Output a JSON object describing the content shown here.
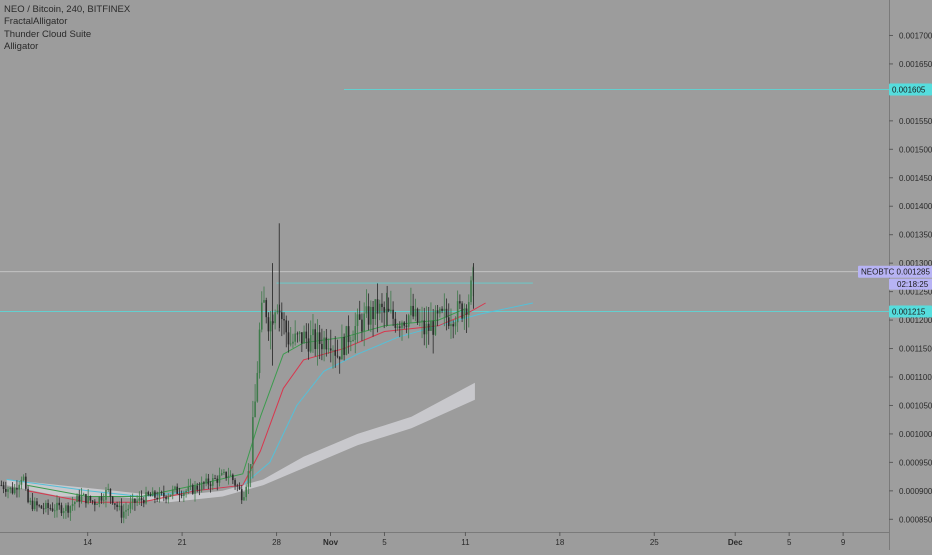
{
  "legend": {
    "symbol_line": "NEO / Bitcoin, 240, BITFINEX",
    "indicators": [
      "FractalAlligator",
      "Thunder Cloud Suite",
      "Alligator"
    ]
  },
  "chart_data": {
    "type": "candlestick",
    "symbol": "NEOBTC",
    "exchange": "BITFINEX",
    "interval": "240",
    "price_axis": {
      "ticks": [
        "0.001700",
        "0.001650",
        "0.001550",
        "0.001500",
        "0.001450",
        "0.001400",
        "0.001350",
        "0.001300",
        "0.001250",
        "0.001200",
        "0.001150",
        "0.001100",
        "0.001050",
        "0.001000",
        "0.000950",
        "0.000900",
        "0.000850"
      ],
      "range": [
        0.00084,
        0.00175
      ]
    },
    "time_axis": {
      "ticks": [
        {
          "label": "14",
          "day": 14
        },
        {
          "label": "21",
          "day": 21
        },
        {
          "label": "28",
          "day": 28
        },
        {
          "label": "Nov",
          "day": 32
        },
        {
          "label": "5",
          "day": 36
        },
        {
          "label": "11",
          "day": 42
        },
        {
          "label": "18",
          "day": 49
        },
        {
          "label": "25",
          "day": 56
        },
        {
          "label": "Dec",
          "day": 62
        },
        {
          "label": "5",
          "day": 66
        },
        {
          "label": "9",
          "day": 70
        }
      ],
      "day_range": [
        7.5,
        73.4
      ]
    },
    "current_price": {
      "label": "NEOBTC",
      "value": "0.001285",
      "countdown": "02:18:25"
    },
    "horizontal_lines": [
      {
        "value": "0.001605",
        "color": "#55dddd",
        "from_day": 33
      },
      {
        "value": "0.001215",
        "color": "#55dddd",
        "from_day": 7.5
      }
    ],
    "resistance_line": {
      "value": 0.001265,
      "from_day": 28,
      "to_day": 47
    },
    "ohlc_path": [
      [
        7.6,
        0.00091
      ],
      [
        8.5,
        0.0009
      ],
      [
        9.2,
        0.00093
      ],
      [
        9.5,
        0.00088
      ],
      [
        10.5,
        0.00087
      ],
      [
        11.5,
        0.00087
      ],
      [
        12.5,
        0.00087
      ],
      [
        13.5,
        0.00089
      ],
      [
        14.5,
        0.00088
      ],
      [
        15.5,
        0.0009
      ],
      [
        16.5,
        0.00086
      ],
      [
        17.5,
        0.00088
      ],
      [
        18.5,
        0.00089
      ],
      [
        19.5,
        0.00089
      ],
      [
        20.5,
        0.0009
      ],
      [
        21.5,
        0.0009
      ],
      [
        22.5,
        0.00091
      ],
      [
        23.5,
        0.00092
      ],
      [
        24.5,
        0.00093
      ],
      [
        25.5,
        0.00089
      ],
      [
        26.0,
        0.00094
      ],
      [
        26.4,
        0.00105
      ],
      [
        26.8,
        0.0012
      ],
      [
        27.1,
        0.00123
      ],
      [
        27.5,
        0.00119
      ],
      [
        28.0,
        0.00124
      ],
      [
        28.3,
        0.00121
      ],
      [
        29.0,
        0.00116
      ],
      [
        30.0,
        0.00117
      ],
      [
        31.0,
        0.00116
      ],
      [
        32.0,
        0.00117
      ],
      [
        32.5,
        0.00114
      ],
      [
        33.5,
        0.00118
      ],
      [
        34.5,
        0.0012
      ],
      [
        35.5,
        0.00122
      ],
      [
        36.0,
        0.00121
      ],
      [
        37.0,
        0.0012
      ],
      [
        38.0,
        0.00121
      ],
      [
        39.0,
        0.00118
      ],
      [
        40.0,
        0.0012
      ],
      [
        41.0,
        0.00121
      ],
      [
        41.8,
        0.00122
      ],
      [
        42.3,
        0.00124
      ],
      [
        42.7,
        0.001285
      ]
    ],
    "spikes": [
      {
        "day": 28.2,
        "high": 0.00137,
        "low": 0.00118
      },
      {
        "day": 27.7,
        "high": 0.0013,
        "low": 0.00112
      },
      {
        "day": 42.6,
        "high": 0.0013,
        "low": 0.00122
      },
      {
        "day": 36.2,
        "high": 0.00126,
        "low": 0.00119
      }
    ],
    "alligator": {
      "red": [
        [
          9.5,
          0.0009
        ],
        [
          14,
          0.00088
        ],
        [
          18,
          0.00088
        ],
        [
          22,
          0.0009
        ],
        [
          25.5,
          0.00091
        ],
        [
          26.8,
          0.00097
        ],
        [
          28.5,
          0.00108
        ],
        [
          30,
          0.00113
        ],
        [
          33,
          0.00115
        ],
        [
          36,
          0.00118
        ],
        [
          40,
          0.00119
        ],
        [
          42,
          0.00121
        ],
        [
          43.5,
          0.00123
        ]
      ],
      "green": [
        [
          9.5,
          0.00091
        ],
        [
          14,
          0.00089
        ],
        [
          18,
          0.00089
        ],
        [
          22,
          0.00091
        ],
        [
          25.5,
          0.00093
        ],
        [
          26.8,
          0.00103
        ],
        [
          28.5,
          0.00114
        ],
        [
          30,
          0.00116
        ],
        [
          33,
          0.00117
        ],
        [
          36,
          0.00119
        ],
        [
          40,
          0.0012
        ],
        [
          42,
          0.00122
        ]
      ],
      "blue": [
        [
          8,
          0.00092
        ],
        [
          14,
          0.0009
        ],
        [
          18,
          0.00089
        ],
        [
          22,
          0.0009
        ],
        [
          25.5,
          0.00091
        ],
        [
          27.5,
          0.00095
        ],
        [
          29.5,
          0.00105
        ],
        [
          31.5,
          0.00111
        ],
        [
          34,
          0.00114
        ],
        [
          37,
          0.00117
        ],
        [
          40,
          0.00119
        ],
        [
          43,
          0.00121
        ],
        [
          47,
          0.00123
        ]
      ]
    },
    "cloud": {
      "upper": [
        [
          8,
          0.00092
        ],
        [
          12,
          0.00091
        ],
        [
          16,
          0.0009
        ],
        [
          20,
          0.00089
        ],
        [
          24,
          0.0009
        ],
        [
          27,
          0.00092
        ],
        [
          30,
          0.00096
        ],
        [
          34,
          0.001
        ],
        [
          38,
          0.00103
        ],
        [
          42.7,
          0.00109
        ]
      ],
      "lower": [
        [
          8,
          0.00091
        ],
        [
          12,
          0.00089
        ],
        [
          16,
          0.00089
        ],
        [
          20,
          0.00088
        ],
        [
          24,
          0.00089
        ],
        [
          27,
          0.00091
        ],
        [
          30,
          0.00094
        ],
        [
          34,
          0.00098
        ],
        [
          38,
          0.00101
        ],
        [
          42.7,
          0.00106
        ]
      ],
      "color": "#d3d3d8"
    },
    "colors": {
      "up": "#3e7a4a",
      "down": "#2a2a2a",
      "cyan": "#55dddd",
      "price_label": "#b7b3f4"
    }
  }
}
